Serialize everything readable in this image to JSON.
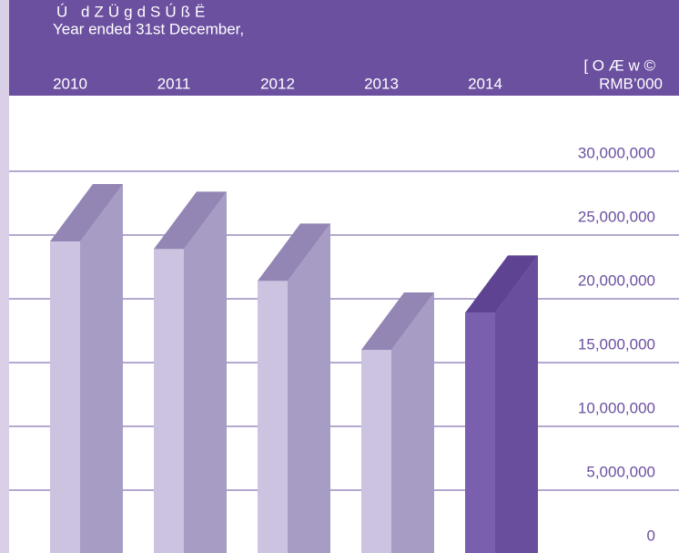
{
  "chart_data": {
    "type": "bar3d",
    "title": "Ú dZÜgdSÚßË",
    "subtitle": "Year ended 31st December,",
    "y_label_native": "[ O Æ w ©",
    "y_label": "RMB’000",
    "categories": [
      "2010",
      "2011",
      "2012",
      "2013",
      "2014"
    ],
    "values": [
      24500000,
      23900000,
      21400000,
      16000000,
      18900000
    ],
    "colors": [
      "#cbc3e0",
      "#cbc3e0",
      "#cbc3e0",
      "#cbc3e0",
      "#7a5fae"
    ],
    "ylim": [
      0,
      30000000
    ],
    "yticks": [
      0,
      {
        "value": 5000000,
        "label": "5,000,000"
      },
      {
        "value": 10000000,
        "label": "10,000,000"
      },
      {
        "value": 15000000,
        "label": "15,000,000"
      },
      {
        "value": 20000000,
        "label": "20,000,000"
      },
      {
        "value": 25000000,
        "label": "25,000,000"
      },
      {
        "value": 30000000,
        "label": "30,000,000"
      }
    ],
    "grid": true
  }
}
